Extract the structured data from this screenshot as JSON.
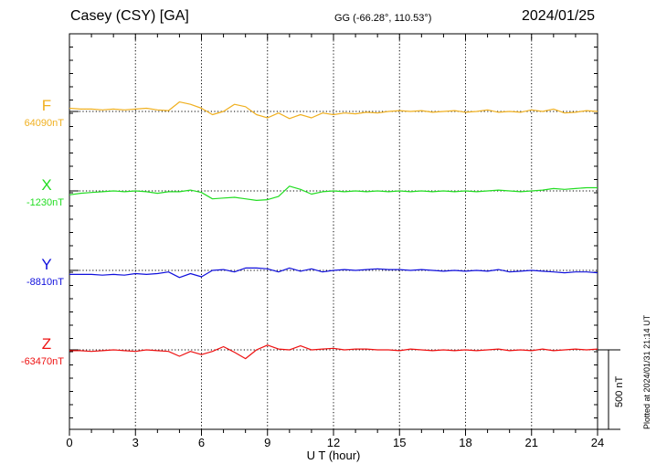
{
  "header": {
    "station": "Casey (CSY)  [GA]",
    "coords": "GG (-66.28°, 110.53°)",
    "date": "2024/01/25"
  },
  "footer": {
    "plotted": "Plotted at 2024/01/31 21:14 UT",
    "scale_label": "500 nT"
  },
  "chart_data": {
    "type": "line",
    "title": "Casey (CSY)  [GA]",
    "xlabel": "U T (hour)",
    "xlim": [
      0,
      24
    ],
    "x_ticks": [
      0,
      3,
      6,
      9,
      12,
      15,
      18,
      21,
      24
    ],
    "grid": true,
    "scale_nT": 500,
    "series": [
      {
        "name": "F",
        "baseline_label": "64090nT",
        "color": "#f0b020",
        "x": [
          0,
          0.5,
          1,
          1.5,
          2,
          2.5,
          3,
          3.5,
          4,
          4.5,
          5,
          5.5,
          6,
          6.5,
          7,
          7.5,
          8,
          8.5,
          9,
          9.5,
          10,
          10.5,
          11,
          11.5,
          12,
          12.5,
          13,
          13.5,
          14,
          14.5,
          15,
          15.5,
          16,
          16.5,
          17,
          17.5,
          18,
          18.5,
          19,
          19.5,
          20,
          20.5,
          21,
          21.5,
          22,
          22.5,
          23,
          23.5,
          24
        ],
        "values": [
          20,
          15,
          15,
          10,
          15,
          10,
          15,
          20,
          10,
          5,
          60,
          45,
          20,
          -20,
          0,
          45,
          30,
          -20,
          -40,
          -10,
          -45,
          -20,
          -40,
          -10,
          -20,
          -10,
          -15,
          -5,
          -10,
          0,
          5,
          0,
          5,
          -5,
          0,
          5,
          -5,
          0,
          10,
          -5,
          0,
          -5,
          10,
          0,
          15,
          -10,
          -5,
          5,
          0
        ]
      },
      {
        "name": "X",
        "baseline_label": "-1230nT",
        "color": "#22dd22",
        "x": [
          0,
          0.5,
          1,
          1.5,
          2,
          2.5,
          3,
          3.5,
          4,
          4.5,
          5,
          5.5,
          6,
          6.5,
          7,
          7.5,
          8,
          8.5,
          9,
          9.5,
          10,
          10.5,
          11,
          11.5,
          12,
          12.5,
          13,
          13.5,
          14,
          14.5,
          15,
          15.5,
          16,
          16.5,
          17,
          17.5,
          18,
          18.5,
          19,
          19.5,
          20,
          20.5,
          21,
          21.5,
          22,
          22.5,
          23,
          23.5,
          24
        ],
        "values": [
          -25,
          -15,
          -10,
          -5,
          0,
          -5,
          0,
          -5,
          -15,
          -5,
          -5,
          5,
          -10,
          -50,
          -45,
          -40,
          -50,
          -60,
          -55,
          -35,
          30,
          10,
          -20,
          -5,
          0,
          -5,
          0,
          -5,
          0,
          -5,
          0,
          -5,
          0,
          -5,
          0,
          -5,
          0,
          -5,
          0,
          5,
          0,
          -5,
          0,
          5,
          15,
          10,
          15,
          20,
          20
        ]
      },
      {
        "name": "Y",
        "baseline_label": "-8810nT",
        "color": "#1010dd",
        "x": [
          0,
          0.5,
          1,
          1.5,
          2,
          2.5,
          3,
          3.5,
          4,
          4.5,
          5,
          5.5,
          6,
          6.5,
          7,
          7.5,
          8,
          8.5,
          9,
          9.5,
          10,
          10.5,
          11,
          11.5,
          12,
          12.5,
          13,
          13.5,
          14,
          14.5,
          15,
          15.5,
          16,
          16.5,
          17,
          17.5,
          18,
          18.5,
          19,
          19.5,
          20,
          20.5,
          21,
          21.5,
          22,
          22.5,
          23,
          23.5,
          24
        ],
        "values": [
          -25,
          -25,
          -25,
          -30,
          -25,
          -30,
          -20,
          -25,
          -20,
          -10,
          -45,
          -20,
          -40,
          0,
          5,
          -10,
          15,
          15,
          10,
          -10,
          15,
          -5,
          10,
          -10,
          0,
          5,
          0,
          5,
          10,
          5,
          5,
          0,
          5,
          0,
          -5,
          0,
          -5,
          0,
          -5,
          5,
          -10,
          -5,
          0,
          -5,
          -10,
          -15,
          -10,
          -10,
          -15
        ]
      },
      {
        "name": "Z",
        "baseline_label": "-63470nT",
        "color": "#ee1111",
        "x": [
          0,
          0.5,
          1,
          1.5,
          2,
          2.5,
          3,
          3.5,
          4,
          4.5,
          5,
          5.5,
          6,
          6.5,
          7,
          7.5,
          8,
          8.5,
          9,
          9.5,
          10,
          10.5,
          11,
          11.5,
          12,
          12.5,
          13,
          13.5,
          14,
          14.5,
          15,
          15.5,
          16,
          16.5,
          17,
          17.5,
          18,
          18.5,
          19,
          19.5,
          20,
          20.5,
          21,
          21.5,
          22,
          22.5,
          23,
          23.5,
          24
        ],
        "values": [
          -5,
          -5,
          -10,
          -5,
          0,
          -5,
          -10,
          0,
          -5,
          -10,
          -40,
          -10,
          -30,
          -10,
          20,
          -15,
          -55,
          0,
          30,
          5,
          0,
          25,
          0,
          5,
          10,
          0,
          5,
          5,
          0,
          0,
          -5,
          5,
          0,
          -5,
          0,
          -5,
          0,
          -5,
          0,
          5,
          -5,
          0,
          -5,
          5,
          -5,
          0,
          5,
          0,
          5
        ]
      }
    ]
  }
}
